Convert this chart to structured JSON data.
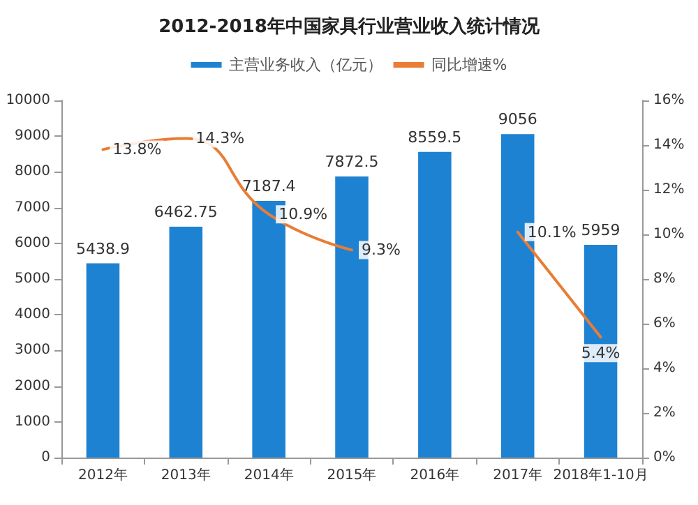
{
  "chart_data": {
    "type": "bar",
    "title": "2012-2018年中国家具行业营业收入统计情况",
    "categories": [
      "2012年",
      "2013年",
      "2014年",
      "2015年",
      "2016年",
      "2017年",
      "2018年1-10月"
    ],
    "series": [
      {
        "name": "主营业务收入（亿元）",
        "color": "#1e82d2",
        "values": [
          5438.9,
          6462.75,
          7187.4,
          7872.5,
          8559.5,
          9056,
          5959
        ],
        "value_labels": [
          "5438.9",
          "6462.75",
          "7187.4",
          "7872.5",
          "8559.5",
          "9056",
          "5959"
        ]
      },
      {
        "name": "同比增速%",
        "type": "line",
        "axis": "y2",
        "color": "#e87d35",
        "values": [
          13.8,
          14.3,
          10.9,
          9.3,
          null,
          10.1,
          5.4
        ],
        "value_labels": [
          "13.8%",
          "14.3%",
          "10.9%",
          "9.3%",
          null,
          "10.1%",
          "5.4%"
        ]
      }
    ],
    "ylim": [
      0,
      10000
    ],
    "yticks": [
      0,
      1000,
      2000,
      3000,
      4000,
      5000,
      6000,
      7000,
      8000,
      9000,
      10000
    ],
    "y2lim": [
      0,
      16
    ],
    "y2ticks": [
      {
        "value": 0,
        "label": "0%"
      },
      {
        "value": 2,
        "label": "2%"
      },
      {
        "value": 4,
        "label": "4%"
      },
      {
        "value": 6,
        "label": "6%"
      },
      {
        "value": 8,
        "label": "8%"
      },
      {
        "value": 10,
        "label": "10%"
      },
      {
        "value": 12,
        "label": "12%"
      },
      {
        "value": 14,
        "label": "14%"
      },
      {
        "value": 16,
        "label": "16%"
      }
    ],
    "legend": "top",
    "grid": false,
    "marker": "none"
  }
}
